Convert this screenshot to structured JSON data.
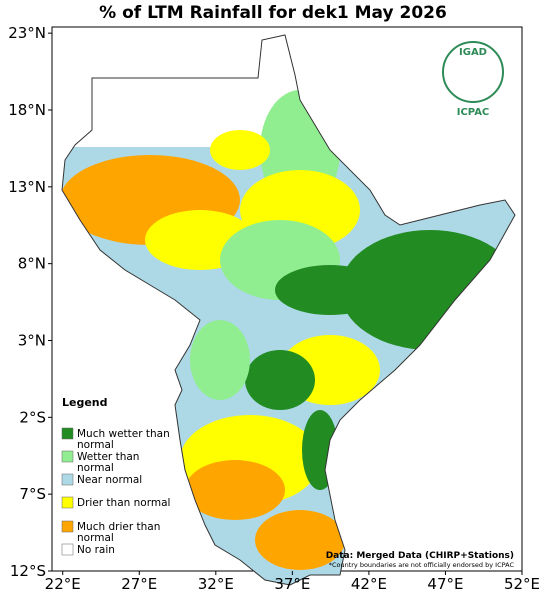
{
  "map": {
    "title": "% of LTM Rainfall for dek1 May 2026",
    "lonlim": [
      21.3,
      52
    ],
    "latlim": [
      -12,
      23.4
    ],
    "lon_ticks": [
      {
        "value": 22,
        "label": "22°E"
      },
      {
        "value": 27,
        "label": "27°E"
      },
      {
        "value": 32,
        "label": "32°E"
      },
      {
        "value": 37,
        "label": "37°E"
      },
      {
        "value": 42,
        "label": "42°E"
      },
      {
        "value": 47,
        "label": "47°E"
      },
      {
        "value": 52,
        "label": "52°E"
      }
    ],
    "lat_ticks": [
      {
        "value": 23,
        "label": "23°N"
      },
      {
        "value": 18,
        "label": "18°N"
      },
      {
        "value": 13,
        "label": "13°N"
      },
      {
        "value": 8,
        "label": "8°N"
      },
      {
        "value": 3,
        "label": "3°N"
      },
      {
        "value": -2,
        "label": "2°S"
      },
      {
        "value": -7,
        "label": "7°S"
      },
      {
        "value": -12,
        "label": "12°S"
      }
    ],
    "legend": {
      "title": "Legend",
      "items": [
        {
          "label": "Much wetter than normal",
          "color": "#228b22"
        },
        {
          "label": "Wetter than normal",
          "color": "#90ee90"
        },
        {
          "label": "Near normal",
          "color": "#add8e6"
        },
        {
          "label": "Drier than normal",
          "color": "#ffff00"
        },
        {
          "label": "Much drier than normal",
          "color": "#ffa500"
        },
        {
          "label": "No rain",
          "color": "#ffffff"
        }
      ]
    },
    "source": "Data: Merged Data (CHIRP+Stations)",
    "disclaimer": "*Country boundaries are not officially endorsed by ICPAC",
    "logo": {
      "name": "IGAD",
      "org": "ICPAC"
    }
  }
}
